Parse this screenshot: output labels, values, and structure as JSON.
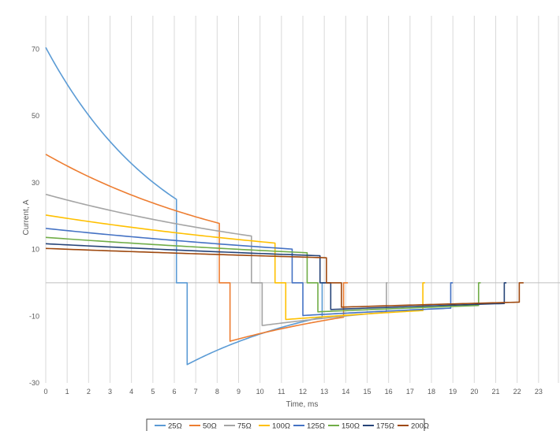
{
  "chart_data": {
    "type": "line",
    "title": "",
    "xlabel": "Time, ms",
    "ylabel": "Current, A",
    "xlim": [
      0,
      24
    ],
    "ylim": [
      -30,
      80
    ],
    "x_ticks": [
      "0",
      "1",
      "2",
      "3",
      "4",
      "5",
      "6",
      "7",
      "8",
      "9",
      "10",
      "11",
      "12",
      "13",
      "14",
      "15",
      "16",
      "17",
      "18",
      "19",
      "20",
      "21",
      "22",
      "23"
    ],
    "y_ticks": [
      "70",
      "50",
      "30",
      "10",
      "-10",
      "-30"
    ],
    "y_tick_values": [
      70,
      50,
      30,
      10,
      -10,
      -30
    ],
    "grid": "vertical",
    "legend_position": "bottom",
    "series": [
      {
        "name": "25Ω",
        "color": "#5b9bd5",
        "on": {
          "t0": 0,
          "i0": 70.5,
          "t1": 6.1,
          "i1": 25.0
        },
        "off": {
          "start": 6.1,
          "recover": 6.6,
          "trough": -24.5,
          "tail_end": 12.9,
          "tail_value": -10.3,
          "end": 13.3
        }
      },
      {
        "name": "50Ω",
        "color": "#ed7d31",
        "on": {
          "t0": 0,
          "i0": 38.5,
          "t1": 8.1,
          "i1": 17.8
        },
        "off": {
          "start": 8.1,
          "recover": 8.6,
          "trough": -17.5,
          "tail_end": 13.9,
          "tail_value": -10.3,
          "end": 14.1
        }
      },
      {
        "name": "75Ω",
        "color": "#a5a5a5",
        "on": {
          "t0": 0,
          "i0": 26.5,
          "t1": 9.6,
          "i1": 14.0
        },
        "off": {
          "start": 9.6,
          "recover": 10.1,
          "trough": -12.8,
          "tail_end": 15.9,
          "tail_value": -8.8,
          "end": 15.95
        }
      },
      {
        "name": "100Ω",
        "color": "#ffc000",
        "on": {
          "t0": 0,
          "i0": 20.3,
          "t1": 10.7,
          "i1": 11.9
        },
        "off": {
          "start": 10.7,
          "recover": 11.2,
          "trough": -11.0,
          "tail_end": 17.6,
          "tail_value": -8.3,
          "end": 17.7
        }
      },
      {
        "name": "125Ω",
        "color": "#4472c4",
        "on": {
          "t0": 0,
          "i0": 16.3,
          "t1": 11.5,
          "i1": 10.1
        },
        "off": {
          "start": 11.5,
          "recover": 12.0,
          "trough": -9.8,
          "tail_end": 18.9,
          "tail_value": -7.6,
          "end": 19.0
        }
      },
      {
        "name": "150Ω",
        "color": "#70ad47",
        "on": {
          "t0": 0,
          "i0": 13.6,
          "t1": 12.2,
          "i1": 9.0
        },
        "off": {
          "start": 12.2,
          "recover": 12.7,
          "trough": -8.7,
          "tail_end": 20.2,
          "tail_value": -6.8,
          "end": 20.3
        }
      },
      {
        "name": "175Ω",
        "color": "#264478",
        "on": {
          "t0": 0,
          "i0": 11.7,
          "t1": 12.8,
          "i1": 8.1
        },
        "off": {
          "start": 12.8,
          "recover": 13.3,
          "trough": -8.0,
          "tail_end": 21.4,
          "tail_value": -6.2,
          "end": 21.5
        }
      },
      {
        "name": "200Ω",
        "color": "#9e480e",
        "on": {
          "t0": 0,
          "i0": 10.3,
          "t1": 13.1,
          "i1": 7.5
        },
        "off": {
          "start": 13.1,
          "recover": 13.8,
          "trough": -7.3,
          "tail_end": 22.1,
          "tail_value": -5.8,
          "end": 22.3
        }
      }
    ]
  }
}
